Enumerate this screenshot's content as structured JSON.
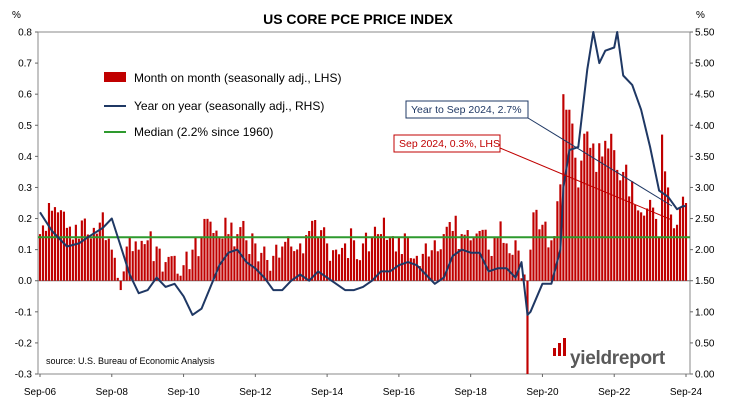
{
  "chart_data": {
    "type": "bar+line",
    "title": "US CORE PCE PRICE INDEX",
    "left_unit": "%",
    "right_unit": "%",
    "left_axis": {
      "min": -0.3,
      "max": 0.8,
      "step": 0.1,
      "tick_labels": [
        "-0.3",
        "-0.2",
        "-0.1",
        "0.0",
        "0.1",
        "0.2",
        "0.3",
        "0.4",
        "0.5",
        "0.6",
        "0.7",
        "0.8"
      ]
    },
    "right_axis": {
      "min": 0.0,
      "max": 5.5,
      "step": 0.5,
      "tick_labels": [
        "0.00",
        "0.50",
        "1.00",
        "1.50",
        "2.00",
        "2.50",
        "3.00",
        "3.50",
        "4.00",
        "4.50",
        "5.00",
        "5.50"
      ]
    },
    "x_axis": {
      "start": "2006-09",
      "end": "2024-09",
      "tick_labels": [
        "Sep-06",
        "Sep-08",
        "Sep-10",
        "Sep-12",
        "Sep-14",
        "Sep-16",
        "Sep-18",
        "Sep-20",
        "Sep-22",
        "Sep-24"
      ]
    },
    "legend": [
      {
        "name": "Month on month (seasonally adj., LHS)",
        "color": "#c00000",
        "kind": "bar"
      },
      {
        "name": "Year on year (seasonally adj., RHS)",
        "color": "#1f3864",
        "kind": "line"
      },
      {
        "name": "Median (2.2% since 1960)",
        "color": "#2e9a2e",
        "kind": "hline"
      }
    ],
    "median_rhs": 2.2,
    "colors": {
      "bar": "#c00000",
      "line": "#1f3864",
      "median": "#2e9a2e",
      "callout_yoy": "#1f3864",
      "callout_mom": "#c00000"
    },
    "annotations": [
      {
        "text": "Year to Sep 2024, 2.7%",
        "color": "#1f3864"
      },
      {
        "text": "Sep 2024, 0.3%, LHS",
        "color": "#c00000"
      }
    ],
    "source": "source: U.S. Bureau of Economic Analysis",
    "logo": "yieldreport",
    "mom_anchors": [
      [
        "2006-09",
        0.15
      ],
      [
        "2006-12",
        0.25
      ],
      [
        "2007-03",
        0.22
      ],
      [
        "2007-06",
        0.17
      ],
      [
        "2007-09",
        0.18
      ],
      [
        "2007-12",
        0.2
      ],
      [
        "2008-03",
        0.17
      ],
      [
        "2008-06",
        0.22
      ],
      [
        "2008-09",
        0.1
      ],
      [
        "2008-12",
        -0.03
      ],
      [
        "2009-03",
        0.14
      ],
      [
        "2009-06",
        0.1
      ],
      [
        "2009-09",
        0.13
      ],
      [
        "2009-12",
        0.11
      ],
      [
        "2010-03",
        0.06
      ],
      [
        "2010-06",
        0.08
      ],
      [
        "2010-09",
        0.05
      ],
      [
        "2010-12",
        0.1
      ],
      [
        "2011-03",
        0.14
      ],
      [
        "2011-06",
        0.19
      ],
      [
        "2011-09",
        0.14
      ],
      [
        "2011-12",
        0.15
      ],
      [
        "2012-03",
        0.15
      ],
      [
        "2012-06",
        0.13
      ],
      [
        "2012-09",
        0.12
      ],
      [
        "2012-12",
        0.11
      ],
      [
        "2013-03",
        0.08
      ],
      [
        "2013-06",
        0.11
      ],
      [
        "2013-09",
        0.11
      ],
      [
        "2013-12",
        0.12
      ],
      [
        "2014-03",
        0.16
      ],
      [
        "2014-06",
        0.14
      ],
      [
        "2014-09",
        0.12
      ],
      [
        "2014-12",
        0.1
      ],
      [
        "2015-03",
        0.12
      ],
      [
        "2015-06",
        0.13
      ],
      [
        "2015-09",
        0.12
      ],
      [
        "2015-12",
        0.14
      ],
      [
        "2016-03",
        0.15
      ],
      [
        "2016-06",
        0.14
      ],
      [
        "2016-09",
        0.14
      ],
      [
        "2016-12",
        0.14
      ],
      [
        "2017-03",
        0.08
      ],
      [
        "2017-06",
        0.12
      ],
      [
        "2017-09",
        0.13
      ],
      [
        "2017-12",
        0.15
      ],
      [
        "2018-03",
        0.16
      ],
      [
        "2018-06",
        0.15
      ],
      [
        "2018-09",
        0.13
      ],
      [
        "2018-12",
        0.16
      ],
      [
        "2019-03",
        0.1
      ],
      [
        "2019-06",
        0.14
      ],
      [
        "2019-09",
        0.12
      ],
      [
        "2019-12",
        0.13
      ],
      [
        "2020-03",
        0.02
      ],
      [
        "2020-04",
        -0.3
      ],
      [
        "2020-05",
        0.1
      ],
      [
        "2020-06",
        0.22
      ],
      [
        "2020-09",
        0.18
      ],
      [
        "2020-12",
        0.13
      ],
      [
        "2021-03",
        0.31
      ],
      [
        "2021-04",
        0.6
      ],
      [
        "2021-05",
        0.55
      ],
      [
        "2021-06",
        0.55
      ],
      [
        "2021-09",
        0.3
      ],
      [
        "2021-12",
        0.48
      ],
      [
        "2022-03",
        0.35
      ],
      [
        "2022-06",
        0.45
      ],
      [
        "2022-09",
        0.42
      ],
      [
        "2022-12",
        0.35
      ],
      [
        "2023-03",
        0.32
      ],
      [
        "2023-06",
        0.22
      ],
      [
        "2023-09",
        0.26
      ],
      [
        "2023-12",
        0.14
      ],
      [
        "2024-01",
        0.47
      ],
      [
        "2024-03",
        0.3
      ],
      [
        "2024-06",
        0.18
      ],
      [
        "2024-09",
        0.25
      ]
    ],
    "yoy_anchors": [
      [
        "2006-09",
        2.6
      ],
      [
        "2007-01",
        2.3
      ],
      [
        "2007-06",
        2.05
      ],
      [
        "2007-10",
        2.1
      ],
      [
        "2008-01",
        2.2
      ],
      [
        "2008-06",
        2.35
      ],
      [
        "2008-09",
        2.5
      ],
      [
        "2008-12",
        2.05
      ],
      [
        "2009-03",
        1.6
      ],
      [
        "2009-06",
        1.3
      ],
      [
        "2009-09",
        1.35
      ],
      [
        "2009-12",
        1.55
      ],
      [
        "2010-03",
        1.4
      ],
      [
        "2010-06",
        1.45
      ],
      [
        "2010-09",
        1.25
      ],
      [
        "2010-12",
        0.95
      ],
      [
        "2011-03",
        1.05
      ],
      [
        "2011-06",
        1.4
      ],
      [
        "2011-09",
        1.75
      ],
      [
        "2011-12",
        1.95
      ],
      [
        "2012-03",
        2.0
      ],
      [
        "2012-06",
        1.8
      ],
      [
        "2012-09",
        1.7
      ],
      [
        "2012-12",
        1.55
      ],
      [
        "2013-03",
        1.35
      ],
      [
        "2013-06",
        1.35
      ],
      [
        "2013-09",
        1.5
      ],
      [
        "2013-12",
        1.6
      ],
      [
        "2014-03",
        1.5
      ],
      [
        "2014-06",
        1.65
      ],
      [
        "2014-09",
        1.55
      ],
      [
        "2014-12",
        1.45
      ],
      [
        "2015-03",
        1.35
      ],
      [
        "2015-06",
        1.35
      ],
      [
        "2015-09",
        1.4
      ],
      [
        "2015-12",
        1.5
      ],
      [
        "2016-03",
        1.65
      ],
      [
        "2016-06",
        1.65
      ],
      [
        "2016-09",
        1.75
      ],
      [
        "2016-12",
        1.8
      ],
      [
        "2017-03",
        1.75
      ],
      [
        "2017-06",
        1.6
      ],
      [
        "2017-09",
        1.45
      ],
      [
        "2017-12",
        1.55
      ],
      [
        "2018-03",
        1.9
      ],
      [
        "2018-06",
        2.0
      ],
      [
        "2018-09",
        1.95
      ],
      [
        "2018-12",
        1.95
      ],
      [
        "2019-03",
        1.65
      ],
      [
        "2019-06",
        1.7
      ],
      [
        "2019-09",
        1.7
      ],
      [
        "2019-12",
        1.55
      ],
      [
        "2020-02",
        1.8
      ],
      [
        "2020-04",
        0.95
      ],
      [
        "2020-05",
        1.0
      ],
      [
        "2020-09",
        1.45
      ],
      [
        "2020-12",
        1.45
      ],
      [
        "2021-03",
        2.0
      ],
      [
        "2021-04",
        3.0
      ],
      [
        "2021-06",
        3.6
      ],
      [
        "2021-09",
        3.65
      ],
      [
        "2021-12",
        4.9
      ],
      [
        "2022-02",
        5.5
      ],
      [
        "2022-04",
        5.0
      ],
      [
        "2022-06",
        5.2
      ],
      [
        "2022-09",
        5.25
      ],
      [
        "2022-10",
        5.6
      ],
      [
        "2022-12",
        4.8
      ],
      [
        "2023-03",
        4.65
      ],
      [
        "2023-06",
        4.25
      ],
      [
        "2023-09",
        3.65
      ],
      [
        "2023-12",
        2.95
      ],
      [
        "2024-03",
        2.85
      ],
      [
        "2024-06",
        2.65
      ],
      [
        "2024-08",
        2.7
      ],
      [
        "2024-09",
        2.7
      ]
    ]
  }
}
